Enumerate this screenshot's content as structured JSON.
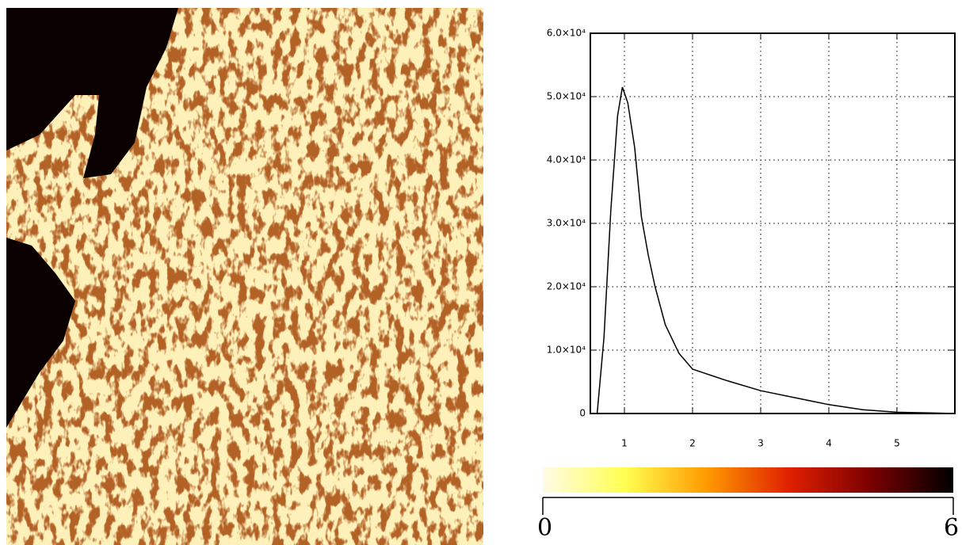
{
  "chart_data": [
    {
      "type": "line",
      "x": [
        0.6,
        0.7,
        0.8,
        0.9,
        0.97,
        1.05,
        1.15,
        1.25,
        1.35,
        1.45,
        1.6,
        1.8,
        2.0,
        2.5,
        3.0,
        3.5,
        4.0,
        4.5,
        5.0,
        5.5,
        5.85
      ],
      "series": [
        {
          "color": "#000000",
          "values": [
            0,
            12000,
            32000,
            47000,
            51500,
            49000,
            42000,
            31000,
            25000,
            20000,
            14000,
            9500,
            7000,
            5200,
            3600,
            2500,
            1400,
            600,
            200,
            100,
            0
          ]
        }
      ],
      "xlim": [
        0.5,
        5.85
      ],
      "xticks": [
        1,
        2,
        3,
        4,
        5
      ],
      "ylim": [
        0,
        60000
      ],
      "yticks": [
        0,
        {
          "value": 10000,
          "label": "1.0×10⁴"
        },
        {
          "value": 20000,
          "label": "2.0×10⁴"
        },
        {
          "value": 30000,
          "label": "3.0×10⁴"
        },
        {
          "value": 40000,
          "label": "4.0×10⁴"
        },
        {
          "value": 50000,
          "label": "5.0×10⁴"
        },
        {
          "value": 60000,
          "label": "6.0×10⁴"
        }
      ],
      "grid": true
    },
    {
      "type": "colorbar",
      "xlim": [
        0,
        6
      ],
      "xticks": [
        0,
        6
      ],
      "colors": [
        "#fffbe6",
        "#ffff50",
        "#ff9a00",
        "#e02000",
        "#7a0000",
        "#000000"
      ]
    }
  ]
}
